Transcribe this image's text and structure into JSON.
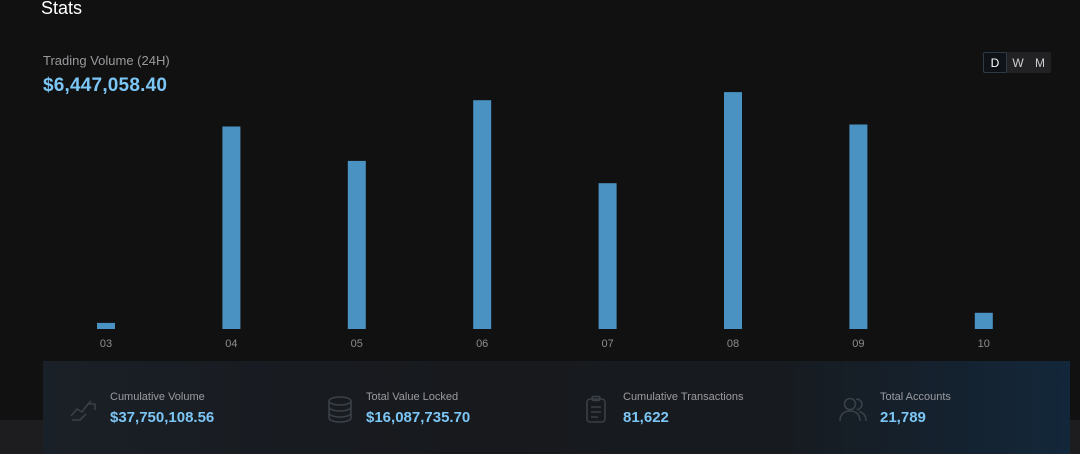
{
  "header": {
    "title": "Stats"
  },
  "volume": {
    "label": "Trading Volume (24H)",
    "value": "$6,447,058.40"
  },
  "period_toggle": {
    "options": [
      "D",
      "W",
      "M"
    ],
    "selected": "D"
  },
  "chart_data": {
    "type": "bar",
    "categories": [
      "03",
      "04",
      "05",
      "06",
      "07",
      "08",
      "09",
      "10"
    ],
    "values": [
      0.3,
      10.0,
      8.3,
      11.3,
      7.2,
      11.7,
      10.1,
      0.8
    ],
    "title": "",
    "xlabel": "",
    "ylabel": "",
    "ylim": [
      0,
      12
    ],
    "grid": false,
    "bar_color": "#4a92c2"
  },
  "stats": [
    {
      "icon": "exchange-icon",
      "label": "Cumulative Volume",
      "value": "$37,750,108.56"
    },
    {
      "icon": "coin-stack-icon",
      "label": "Total Value Locked",
      "value": "$16,087,735.70"
    },
    {
      "icon": "clipboard-icon",
      "label": "Cumulative Transactions",
      "value": "81,622"
    },
    {
      "icon": "users-icon",
      "label": "Total Accounts",
      "value": "21,789"
    }
  ],
  "colors": {
    "accent": "#7cc6f5",
    "background": "#111112",
    "muted_text": "#9a9a9d"
  }
}
